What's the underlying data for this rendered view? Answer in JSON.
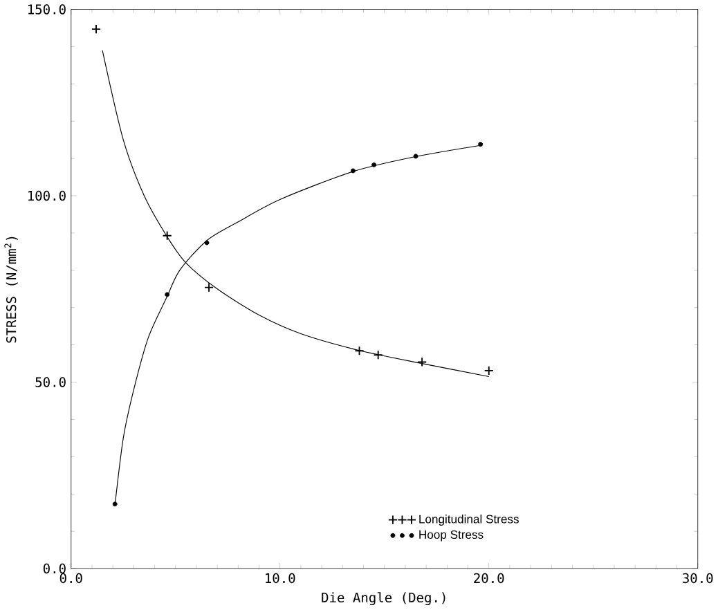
{
  "chart_data": {
    "type": "scatter",
    "xlabel": "Die Angle (Deg.)",
    "ylabel": "STRESS (N/mm$^{2}$)",
    "xlim": [
      0,
      30
    ],
    "ylim": [
      0,
      150
    ],
    "xticks": [
      {
        "value": 0,
        "label": "0.0"
      },
      {
        "value": 10,
        "label": "10.0"
      },
      {
        "value": 20,
        "label": "20.0"
      },
      {
        "value": 30,
        "label": "30.0"
      }
    ],
    "yticks": [
      {
        "value": 0,
        "label": "0.0"
      },
      {
        "value": 50,
        "label": "50.0"
      },
      {
        "value": 100,
        "label": "100.0"
      },
      {
        "value": 150,
        "label": "150.0"
      }
    ],
    "legend": "bottom",
    "grid": false,
    "series": [
      {
        "name": "Longitudinal Stress",
        "color": "#000000",
        "marker": "cross",
        "x": [
          1.2,
          4.6,
          6.6,
          13.8,
          14.7,
          16.8,
          20.0
        ],
        "values": [
          144.7,
          89.3,
          75.4,
          58.4,
          57.3,
          55.4,
          53.1
        ]
      },
      {
        "name": "Hoop Stress",
        "color": "#000000",
        "marker": "circle",
        "x": [
          2.1,
          4.6,
          6.5,
          13.5,
          14.5,
          16.5,
          19.6
        ],
        "values": [
          17.3,
          73.5,
          87.4,
          106.7,
          108.3,
          110.6,
          113.8
        ]
      },
      {
        "type": "line",
        "color": "#000000",
        "x": [
          1.5,
          2.5,
          3.5,
          4.6,
          5.5,
          7,
          9,
          11,
          13.8,
          16.8,
          20
        ],
        "values": [
          139,
          115,
          100,
          89,
          82,
          75,
          68,
          63,
          58.5,
          55,
          51.5
        ]
      },
      {
        "type": "line",
        "color": "#000000",
        "x": [
          2.1,
          2.5,
          3,
          3.7,
          4.6,
          5.2,
          6.5,
          8,
          10,
          13.5,
          16.5,
          19.6
        ],
        "values": [
          17,
          35,
          48,
          62,
          73,
          80,
          88,
          93,
          99,
          106.5,
          110.5,
          113.5
        ]
      }
    ]
  }
}
